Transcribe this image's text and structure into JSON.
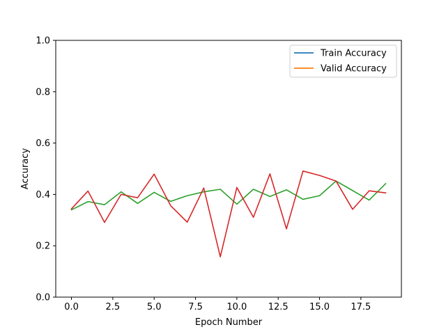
{
  "chart_data": {
    "type": "line",
    "xlabel": "Epoch Number",
    "ylabel": "Accuracy",
    "xlim": [
      -0.95,
      19.95
    ],
    "ylim": [
      0.0,
      1.0
    ],
    "xticks": [
      0.0,
      2.5,
      5.0,
      7.5,
      10.0,
      12.5,
      15.0,
      17.5
    ],
    "xtick_labels": [
      "0.0",
      "2.5",
      "5.0",
      "7.5",
      "10.0",
      "12.5",
      "15.0",
      "17.5"
    ],
    "yticks": [
      0.0,
      0.2,
      0.4,
      0.6,
      0.8,
      1.0
    ],
    "ytick_labels": [
      "0.0",
      "0.2",
      "0.4",
      "0.6",
      "0.8",
      "1.0"
    ],
    "grid": false,
    "legend": {
      "placement": "top-right",
      "entries": [
        {
          "label": "Train Accuracy",
          "color": "#1f77b4"
        },
        {
          "label": "Valid Accuracy",
          "color": "#ff7f0e"
        }
      ]
    },
    "x": [
      0,
      1,
      2,
      3,
      4,
      5,
      6,
      7,
      8,
      9,
      10,
      11,
      12,
      13,
      14,
      15,
      16,
      17,
      18,
      19
    ],
    "series": [
      {
        "color": "#2ca02c",
        "values": [
          0.34,
          0.372,
          0.36,
          0.41,
          0.365,
          0.408,
          0.373,
          0.395,
          0.41,
          0.42,
          0.362,
          0.42,
          0.392,
          0.418,
          0.381,
          0.395,
          0.452,
          0.415,
          0.378,
          0.442
        ]
      },
      {
        "color": "#d62728",
        "values": [
          0.344,
          0.413,
          0.291,
          0.4,
          0.387,
          0.479,
          0.356,
          0.292,
          0.425,
          0.157,
          0.427,
          0.311,
          0.48,
          0.266,
          0.491,
          0.474,
          0.452,
          0.342,
          0.414,
          0.406
        ]
      }
    ]
  }
}
